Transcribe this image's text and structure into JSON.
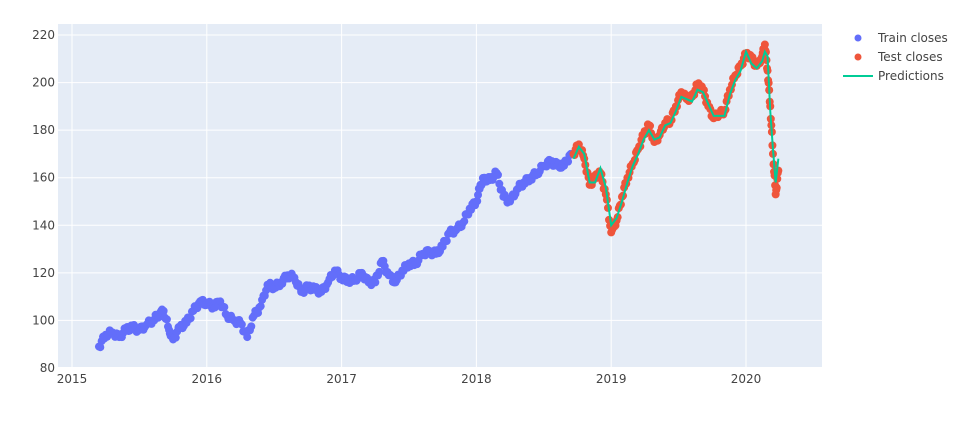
{
  "chart_data": {
    "type": "scatter",
    "title": "",
    "xlabel": "",
    "ylabel": "",
    "x_ticks": [
      "2015",
      "2016",
      "2017",
      "2018",
      "2019",
      "2020"
    ],
    "y_ticks": [
      80,
      100,
      120,
      140,
      160,
      180,
      200,
      220
    ],
    "xlim": [
      2014.9,
      2020.55
    ],
    "ylim": [
      80,
      224
    ],
    "grid": true,
    "legend_position": "right-top",
    "series": [
      {
        "name": "Train closes",
        "mode": "markers",
        "color": "#636efa",
        "x": [
          2015.2,
          2015.25,
          2015.3,
          2015.35,
          2015.4,
          2015.45,
          2015.5,
          2015.55,
          2015.6,
          2015.65,
          2015.68,
          2015.72,
          2015.75,
          2015.8,
          2015.85,
          2015.9,
          2015.95,
          2016.0,
          2016.05,
          2016.1,
          2016.15,
          2016.2,
          2016.25,
          2016.3,
          2016.35,
          2016.4,
          2016.45,
          2016.5,
          2016.55,
          2016.6,
          2016.65,
          2016.7,
          2016.75,
          2016.8,
          2016.85,
          2016.9,
          2016.95,
          2017.0,
          2017.05,
          2017.1,
          2017.15,
          2017.2,
          2017.25,
          2017.3,
          2017.35,
          2017.4,
          2017.45,
          2017.5,
          2017.55,
          2017.6,
          2017.65,
          2017.7,
          2017.75,
          2017.8,
          2017.85,
          2017.9,
          2017.95,
          2018.0,
          2018.03,
          2018.06,
          2018.1,
          2018.15,
          2018.2,
          2018.25,
          2018.3,
          2018.35,
          2018.4,
          2018.45,
          2018.5,
          2018.55,
          2018.6,
          2018.65,
          2018.7
        ],
        "y": [
          89,
          94,
          95,
          93,
          96,
          97,
          96,
          98,
          100,
          103,
          104,
          96,
          92,
          97,
          99,
          104,
          108,
          107,
          106,
          108,
          102,
          100,
          99,
          93,
          102,
          106,
          115,
          114,
          116,
          119,
          118,
          112,
          114,
          113,
          112,
          116,
          121,
          118,
          117,
          117,
          120,
          116,
          116,
          125,
          119,
          116,
          121,
          124,
          124,
          128,
          129,
          128,
          131,
          137,
          138,
          141,
          147,
          150,
          157,
          160,
          159,
          162,
          152,
          150,
          155,
          158,
          160,
          162,
          165,
          167,
          165,
          165,
          170
        ],
        "marker_size": 8
      },
      {
        "name": "Test closes",
        "mode": "markers",
        "color": "#ef553b",
        "x": [
          2018.72,
          2018.76,
          2018.8,
          2018.84,
          2018.88,
          2018.92,
          2018.96,
          2019.0,
          2019.04,
          2019.08,
          2019.12,
          2019.16,
          2019.2,
          2019.24,
          2019.28,
          2019.32,
          2019.36,
          2019.4,
          2019.44,
          2019.48,
          2019.52,
          2019.56,
          2019.6,
          2019.64,
          2019.68,
          2019.72,
          2019.76,
          2019.8,
          2019.84,
          2019.88,
          2019.92,
          2019.96,
          2020.0,
          2020.04,
          2020.08,
          2020.12,
          2020.14,
          2020.16,
          2020.18,
          2020.2,
          2020.22,
          2020.24
        ],
        "y": [
          170,
          174,
          168,
          157,
          160,
          162,
          153,
          137,
          142,
          152,
          160,
          166,
          172,
          178,
          182,
          175,
          178,
          183,
          184,
          190,
          196,
          193,
          194,
          199,
          197,
          190,
          185,
          187,
          188,
          197,
          203,
          207,
          212,
          210,
          207,
          211,
          216,
          205,
          190,
          170,
          153,
          163
        ],
        "marker_size": 8
      },
      {
        "name": "Predictions",
        "mode": "lines",
        "color": "#00cc96",
        "x": [
          2018.72,
          2018.76,
          2018.8,
          2018.84,
          2018.88,
          2018.92,
          2018.96,
          2019.0,
          2019.04,
          2019.08,
          2019.12,
          2019.16,
          2019.2,
          2019.24,
          2019.28,
          2019.32,
          2019.36,
          2019.4,
          2019.44,
          2019.48,
          2019.52,
          2019.56,
          2019.6,
          2019.64,
          2019.68,
          2019.72,
          2019.76,
          2019.8,
          2019.84,
          2019.88,
          2019.92,
          2019.96,
          2020.0,
          2020.04,
          2020.08,
          2020.12,
          2020.14,
          2020.16,
          2020.18,
          2020.2,
          2020.22,
          2020.24
        ],
        "y": [
          168,
          173,
          170,
          158,
          158,
          164,
          156,
          140,
          143,
          150,
          158,
          165,
          170,
          176,
          180,
          176,
          177,
          182,
          183,
          188,
          194,
          193,
          192,
          197,
          196,
          191,
          186,
          186,
          186,
          195,
          201,
          205,
          213,
          208,
          206,
          209,
          213,
          211,
          188,
          172,
          158,
          168
        ]
      }
    ]
  },
  "legend": {
    "items": [
      {
        "label": "Train closes",
        "color": "#636efa",
        "symbol": "marker-dot"
      },
      {
        "label": "Test closes",
        "color": "#ef553b",
        "symbol": "marker-dot"
      },
      {
        "label": "Predictions",
        "color": "#00cc96",
        "symbol": "line"
      }
    ]
  },
  "style": {
    "plot_bg": "#e5ecf6",
    "grid_color": "#ffffff",
    "tick_color": "#444444"
  }
}
